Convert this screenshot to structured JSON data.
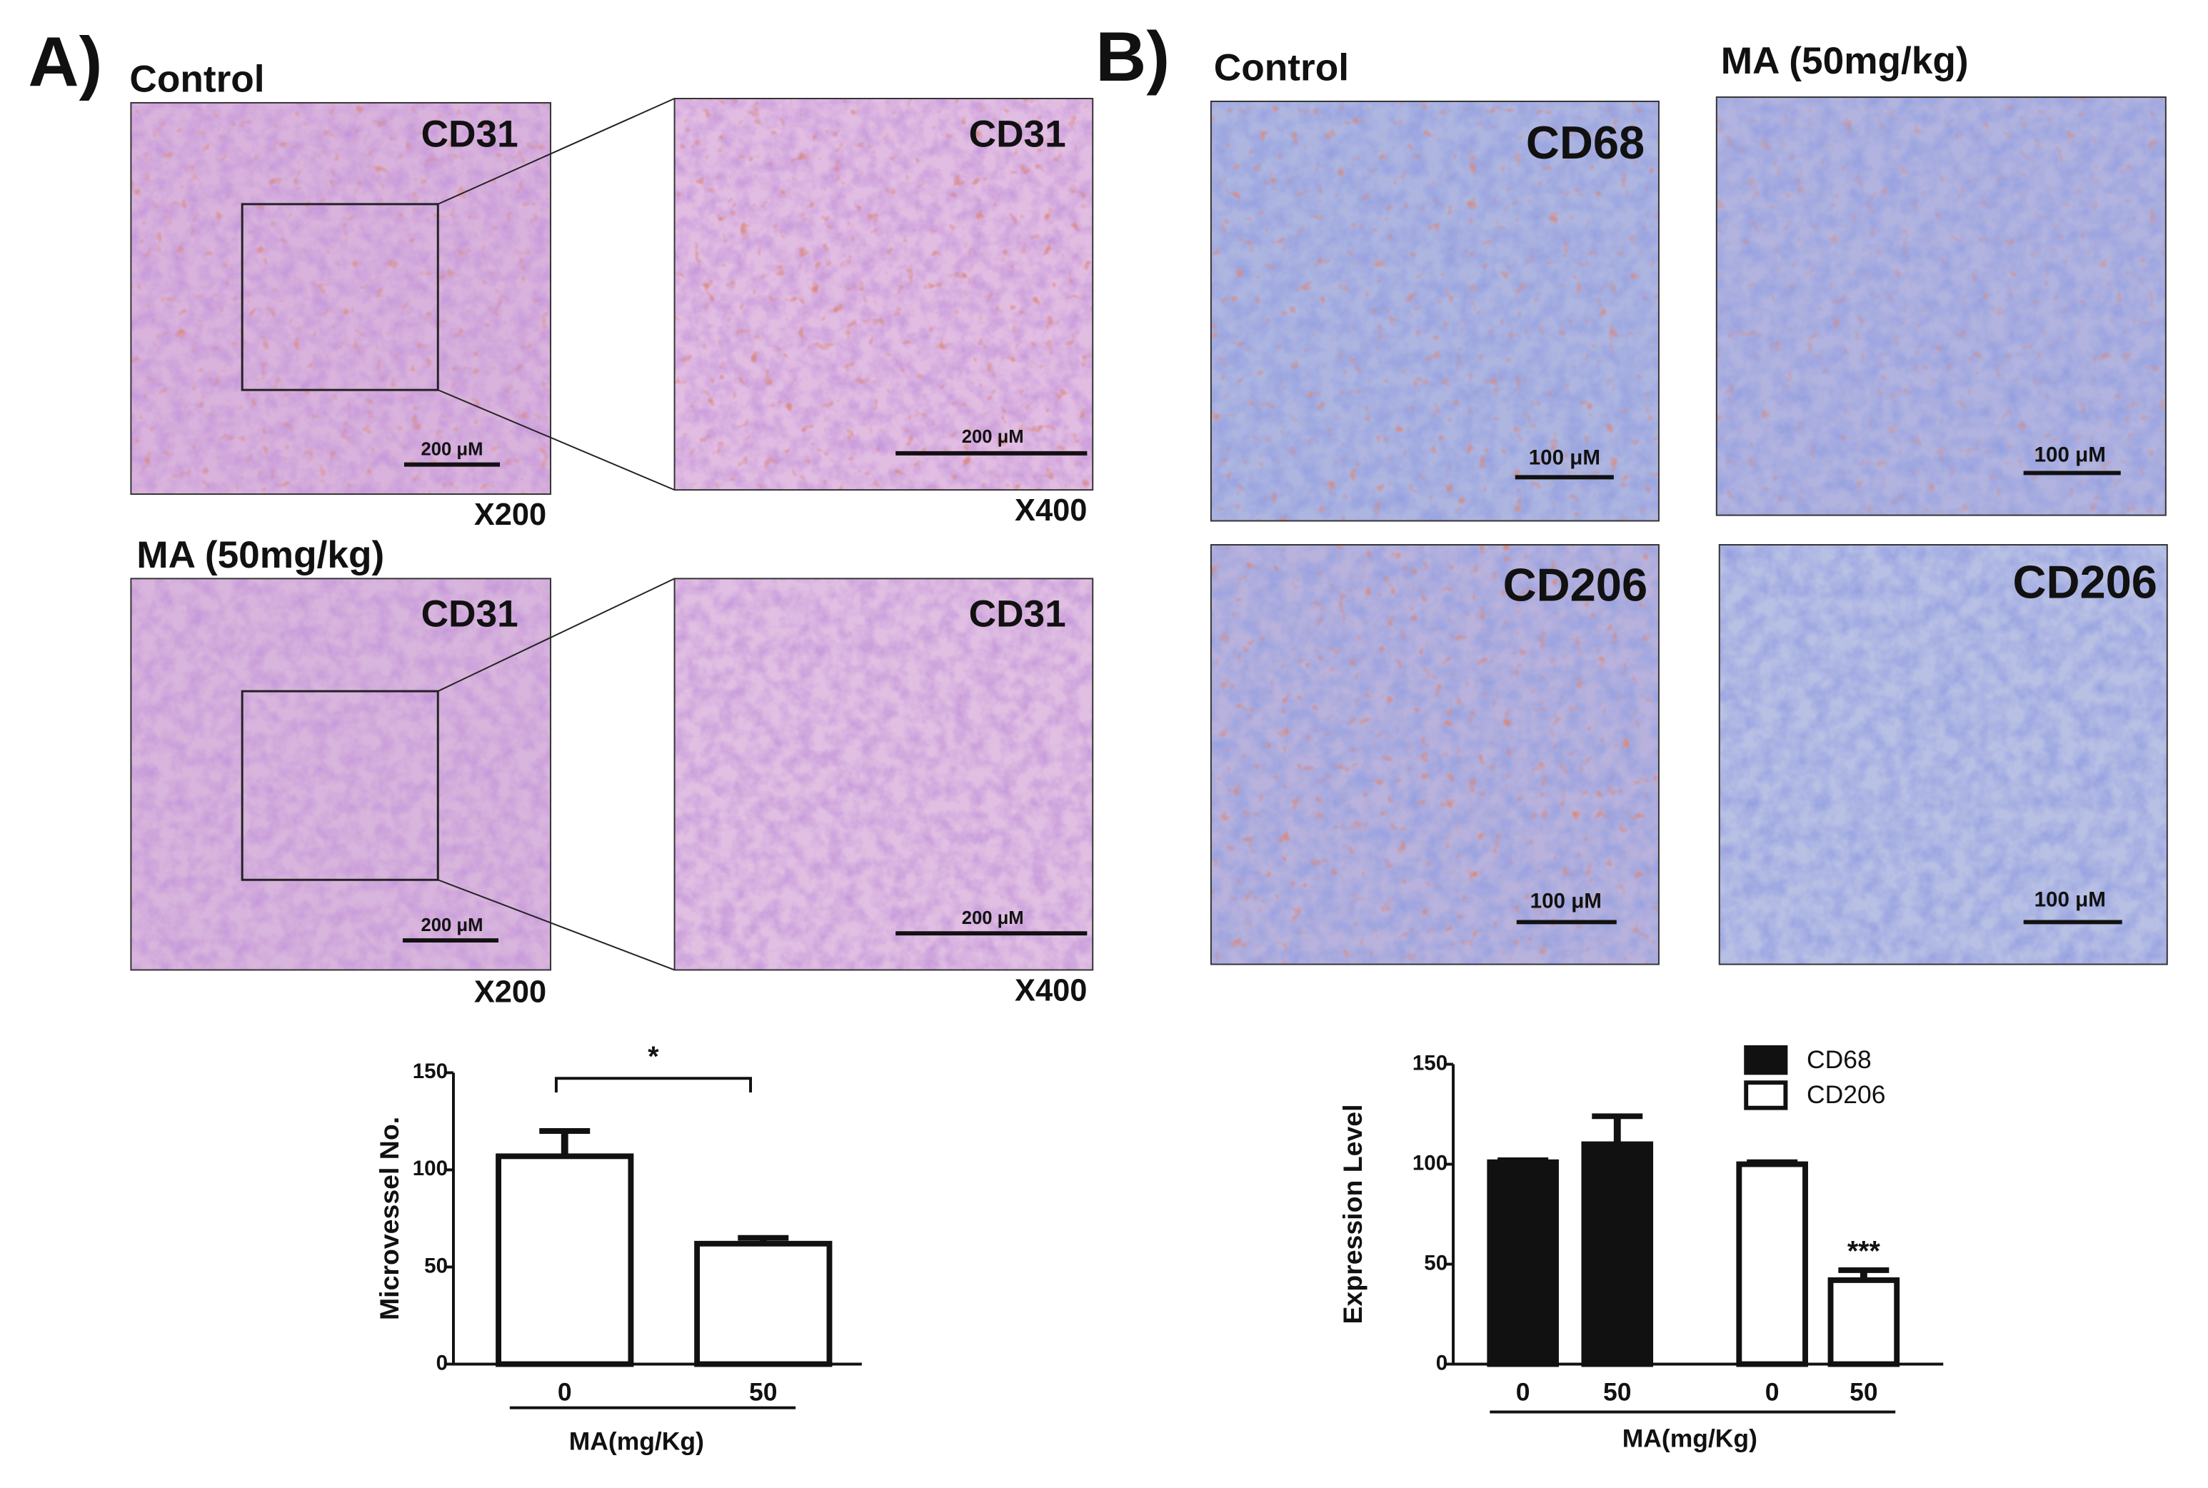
{
  "panel_a": {
    "label": "A)",
    "rows": [
      {
        "group": "Control",
        "stain": "CD31",
        "stain_zoom": "CD31",
        "scale": "200 μM",
        "scale_zoom": "200 μM",
        "mag": "X200",
        "mag_zoom": "X400"
      },
      {
        "group": "MA (50mg/kg)",
        "stain": "CD31",
        "stain_zoom": "CD31",
        "scale": "200 μM",
        "scale_zoom": "200 μM",
        "mag": "X200",
        "mag_zoom": "X400"
      }
    ],
    "chart": {
      "type": "bar",
      "y_label": "Microvessel No.",
      "x_label": "MA(mg/Kg)",
      "categories": [
        "0",
        "50"
      ],
      "values": [
        107,
        62
      ],
      "errors": [
        13,
        3
      ],
      "color": "#ffffff",
      "ylim": [
        0,
        150
      ],
      "yticks": [
        0,
        50,
        100,
        150
      ],
      "significance": "*"
    }
  },
  "panel_b": {
    "label": "B)",
    "columns": [
      "Control",
      "MA (50mg/kg)"
    ],
    "images": [
      {
        "stain": "CD68",
        "scale": "100 μM"
      },
      {
        "scale": "100 μM"
      },
      {
        "stain": "CD206",
        "scale": "100 μM"
      },
      {
        "stain": "CD206",
        "scale": "100 μM"
      }
    ],
    "chart": {
      "type": "bar",
      "y_label": "Expression Level",
      "x_label": "MA(mg/Kg)",
      "categories": [
        "0",
        "50"
      ],
      "series": [
        {
          "name": "CD68",
          "color": "#111111",
          "values": [
            101,
            110
          ],
          "errors": [
            1,
            14
          ]
        },
        {
          "name": "CD206",
          "color": "#ffffff",
          "values": [
            100,
            42
          ],
          "errors": [
            1,
            5
          ]
        }
      ],
      "ylim": [
        0,
        150
      ],
      "yticks": [
        0,
        50,
        100,
        150
      ],
      "annotation": "***",
      "legend": "upper right"
    }
  }
}
